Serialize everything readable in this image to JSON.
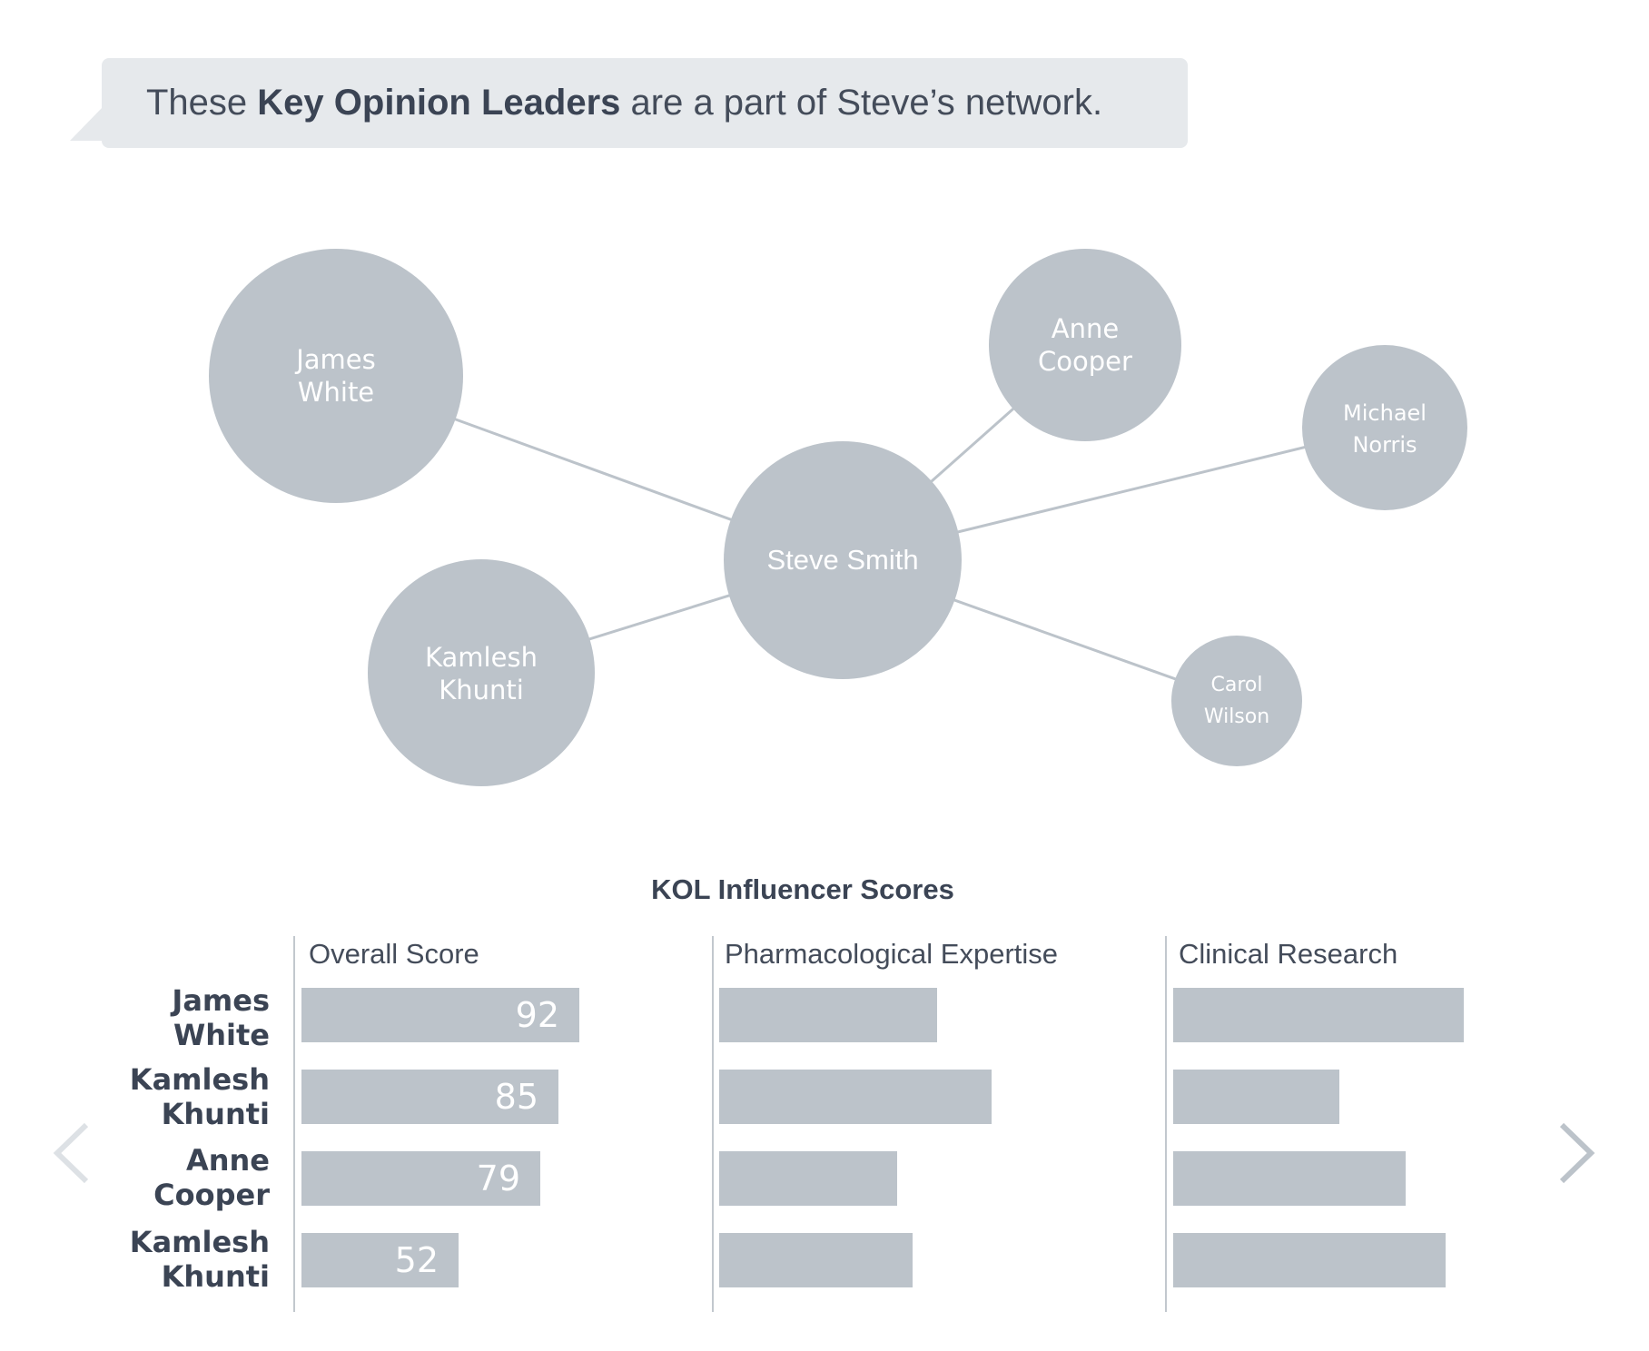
{
  "header": {
    "prefix": "These ",
    "emphasis": "Key Opinion Leaders",
    "suffix": " are a part of Steve’s network."
  },
  "network": {
    "center": {
      "label": "Steve Smith"
    },
    "nodes": [
      {
        "id": "james-white",
        "lines": [
          "James",
          "White"
        ]
      },
      {
        "id": "kamlesh-khunti",
        "lines": [
          "Kamlesh",
          "Khunti"
        ]
      },
      {
        "id": "anne-cooper",
        "lines": [
          "Anne",
          "Cooper"
        ]
      },
      {
        "id": "michael-norris",
        "lines": [
          "Michael",
          "Norris"
        ]
      },
      {
        "id": "carol-wilson",
        "lines": [
          "Carol",
          "Wilson"
        ]
      }
    ]
  },
  "chart_data": {
    "type": "bar",
    "title": "KOL Influencer Scores",
    "categories": [
      "James White",
      "Kamlesh Khunti",
      "Anne Cooper",
      "Kamlesh Khunti"
    ],
    "series": [
      {
        "name": "Overall Score",
        "values": [
          92,
          85,
          79,
          52
        ]
      },
      {
        "name": "Pharmacological Expertise",
        "values": [
          72,
          90,
          59,
          64
        ]
      },
      {
        "name": "Clinical Research",
        "values": [
          96,
          55,
          77,
          90
        ]
      }
    ],
    "value_labels_shown_for": "Overall Score"
  },
  "rows": [
    {
      "line1": "James",
      "line2": "White"
    },
    {
      "line1": "Kamlesh",
      "line2": "Khunti"
    },
    {
      "line1": "Anne",
      "line2": "Cooper"
    },
    {
      "line1": "Kamlesh",
      "line2": "Khunti"
    }
  ],
  "navigation": {
    "prev_icon": "chevron-left-icon",
    "next_icon": "chevron-right-icon"
  },
  "colors": {
    "node": "#bcc3ca",
    "bar": "#bcc3ca",
    "edge": "#bcc3ca",
    "text": "#3b4454",
    "bubble": "#e6e9ec"
  }
}
